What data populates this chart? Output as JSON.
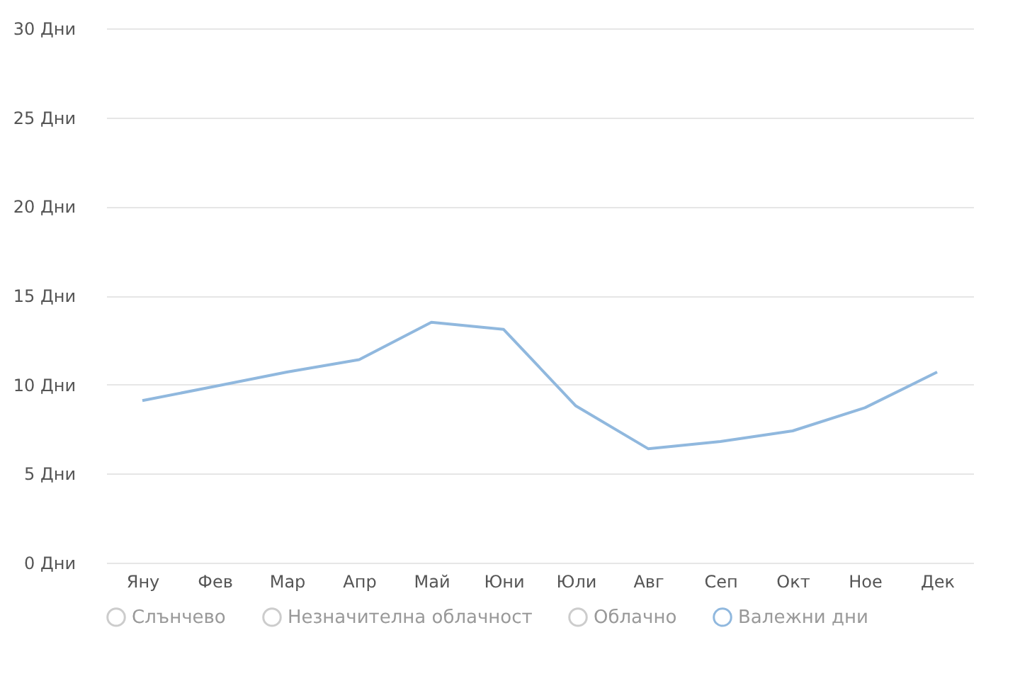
{
  "chart_data": {
    "type": "line",
    "categories": [
      "Яну",
      "Фев",
      "Мар",
      "Апр",
      "Май",
      "Юни",
      "Юли",
      "Авг",
      "Сеп",
      "Окт",
      "Ное",
      "Дек"
    ],
    "series": [
      {
        "name": "Слънчево",
        "color": "#cccccc",
        "values": [
          null,
          null,
          null,
          null,
          null,
          null,
          null,
          null,
          null,
          null,
          null,
          null
        ]
      },
      {
        "name": "Незначителна облачност",
        "color": "#cccccc",
        "values": [
          null,
          null,
          null,
          null,
          null,
          null,
          null,
          null,
          null,
          null,
          null,
          null
        ]
      },
      {
        "name": "Облачно",
        "color": "#cccccc",
        "values": [
          null,
          null,
          null,
          null,
          null,
          null,
          null,
          null,
          null,
          null,
          null,
          null
        ]
      },
      {
        "name": "Валежни дни",
        "color": "#90b8de",
        "values": [
          9.1,
          9.9,
          10.7,
          11.4,
          13.5,
          13.1,
          8.8,
          6.4,
          6.8,
          7.4,
          8.7,
          10.7
        ]
      }
    ],
    "ylim": [
      0,
      30
    ],
    "yticks": [
      {
        "value": 0,
        "label": "0 Дни"
      },
      {
        "value": 5,
        "label": "5 Дни"
      },
      {
        "value": 10,
        "label": "10 Дни"
      },
      {
        "value": 15,
        "label": "15 Дни"
      },
      {
        "value": 20,
        "label": "20 Дни"
      },
      {
        "value": 25,
        "label": "25 Дни"
      },
      {
        "value": 30,
        "label": "30 Дни"
      }
    ],
    "grid": "y",
    "legend": "bottom",
    "marker": "none"
  }
}
